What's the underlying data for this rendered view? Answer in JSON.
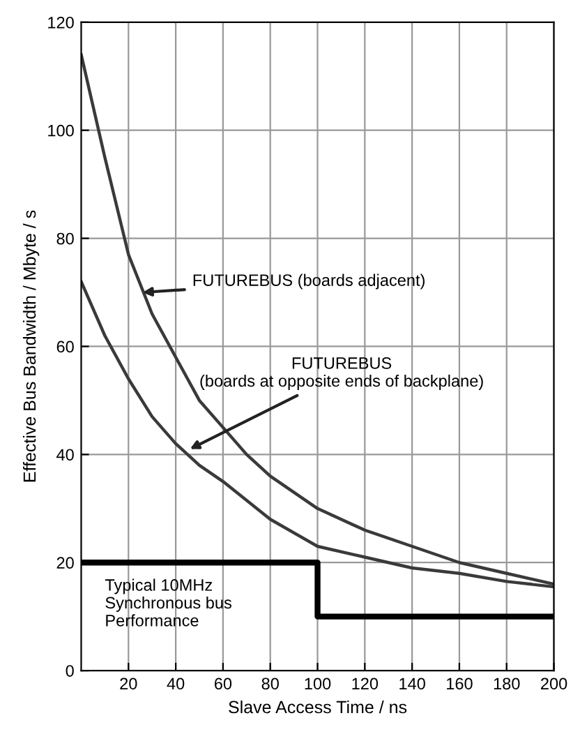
{
  "chart_data": {
    "type": "line",
    "xlabel": "Slave Access Time / ns",
    "ylabel": "Effective Bus Bandwidth / Mbyte / s",
    "xlim": [
      0,
      200
    ],
    "xticks": [
      20,
      40,
      60,
      80,
      100,
      120,
      140,
      160,
      180,
      200
    ],
    "ylim": [
      0,
      120
    ],
    "yticks": [
      0,
      20,
      40,
      60,
      80,
      100,
      120
    ],
    "grid": true,
    "series": [
      {
        "color": "#3a3a3a",
        "x": [
          0,
          10,
          20,
          30,
          40,
          50,
          60,
          70,
          80,
          100,
          120,
          140,
          160,
          180,
          200
        ],
        "values": [
          114,
          95,
          77,
          66,
          58,
          50,
          45,
          40,
          36,
          30,
          26,
          23,
          20,
          18,
          16
        ]
      },
      {
        "color": "#3a3a3a",
        "x": [
          0,
          10,
          20,
          30,
          40,
          50,
          60,
          80,
          100,
          120,
          140,
          160,
          180,
          200
        ],
        "values": [
          72,
          62,
          54,
          47,
          42,
          38,
          35,
          28,
          23,
          21,
          19,
          18,
          16.5,
          15.5
        ]
      },
      {
        "type": "step",
        "color": "#000000",
        "x": [
          0,
          100,
          200
        ],
        "values": [
          20,
          10,
          10
        ]
      }
    ],
    "annotations": [
      {
        "text": "FUTUREBUS (boards adjacent)",
        "x": 26,
        "y": 70
      },
      {
        "text": "FUTUREBUS\n(boards at opposite ends of backplane)",
        "x": 46,
        "y": 41
      },
      "Typical 10MHz\nSynchronous bus\nPerformance"
    ]
  }
}
